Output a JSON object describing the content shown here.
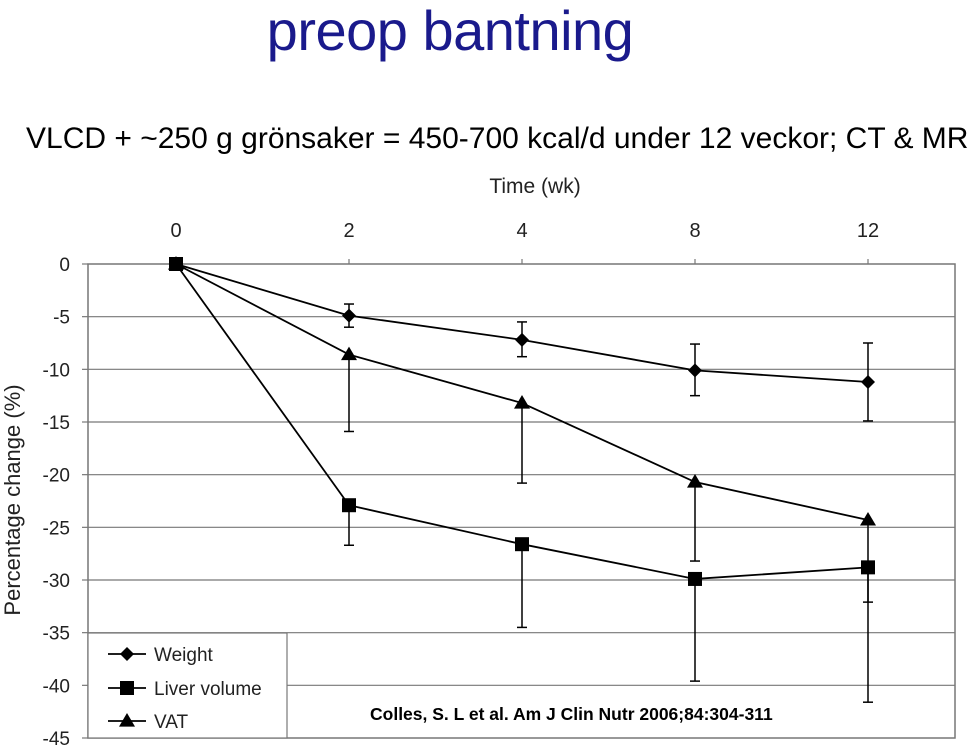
{
  "slide": {
    "title": "preop bantning",
    "subtitle": "VLCD + ~250 g grönsaker = 450-700 kcal/d under 12 veckor; CT & MR",
    "citation": "Colles, S. L et al. Am J Clin Nutr 2006;84:304-311"
  },
  "chart_data": {
    "type": "line",
    "xlabel": "Time (wk)",
    "ylabel": "Percentage change (%)",
    "categories": [
      "0",
      "2",
      "4",
      "8",
      "12"
    ],
    "ylim": [
      -45,
      0
    ],
    "yticks": [
      0,
      -5,
      -10,
      -15,
      -20,
      -25,
      -30,
      -35,
      -40,
      -45
    ],
    "x_axis_position": "top",
    "grid": true,
    "legend_position": "bottom-left",
    "series": [
      {
        "name": "Weight",
        "marker": "diamond",
        "values": [
          0,
          -4.9,
          -7.2,
          -10.1,
          -11.2
        ],
        "err_low": [
          0,
          -6.0,
          -8.8,
          -12.5,
          -14.9
        ],
        "err_high": [
          0,
          -3.8,
          -5.5,
          -7.6,
          -7.5
        ]
      },
      {
        "name": "Liver volume",
        "marker": "square",
        "values": [
          0,
          -22.9,
          -26.6,
          -29.9,
          -28.8
        ],
        "err_low": [
          0,
          -26.7,
          -34.5,
          -39.6,
          -41.6
        ],
        "err_high": [
          0,
          -22.9,
          -26.6,
          -29.9,
          -28.8
        ]
      },
      {
        "name": "VAT",
        "marker": "triangle",
        "values": [
          0,
          -8.6,
          -13.2,
          -20.7,
          -24.3
        ],
        "err_low": [
          0,
          -15.9,
          -20.8,
          -28.2,
          -32.1
        ],
        "err_high": [
          0,
          -8.6,
          -13.2,
          -20.7,
          -24.3
        ]
      }
    ]
  }
}
